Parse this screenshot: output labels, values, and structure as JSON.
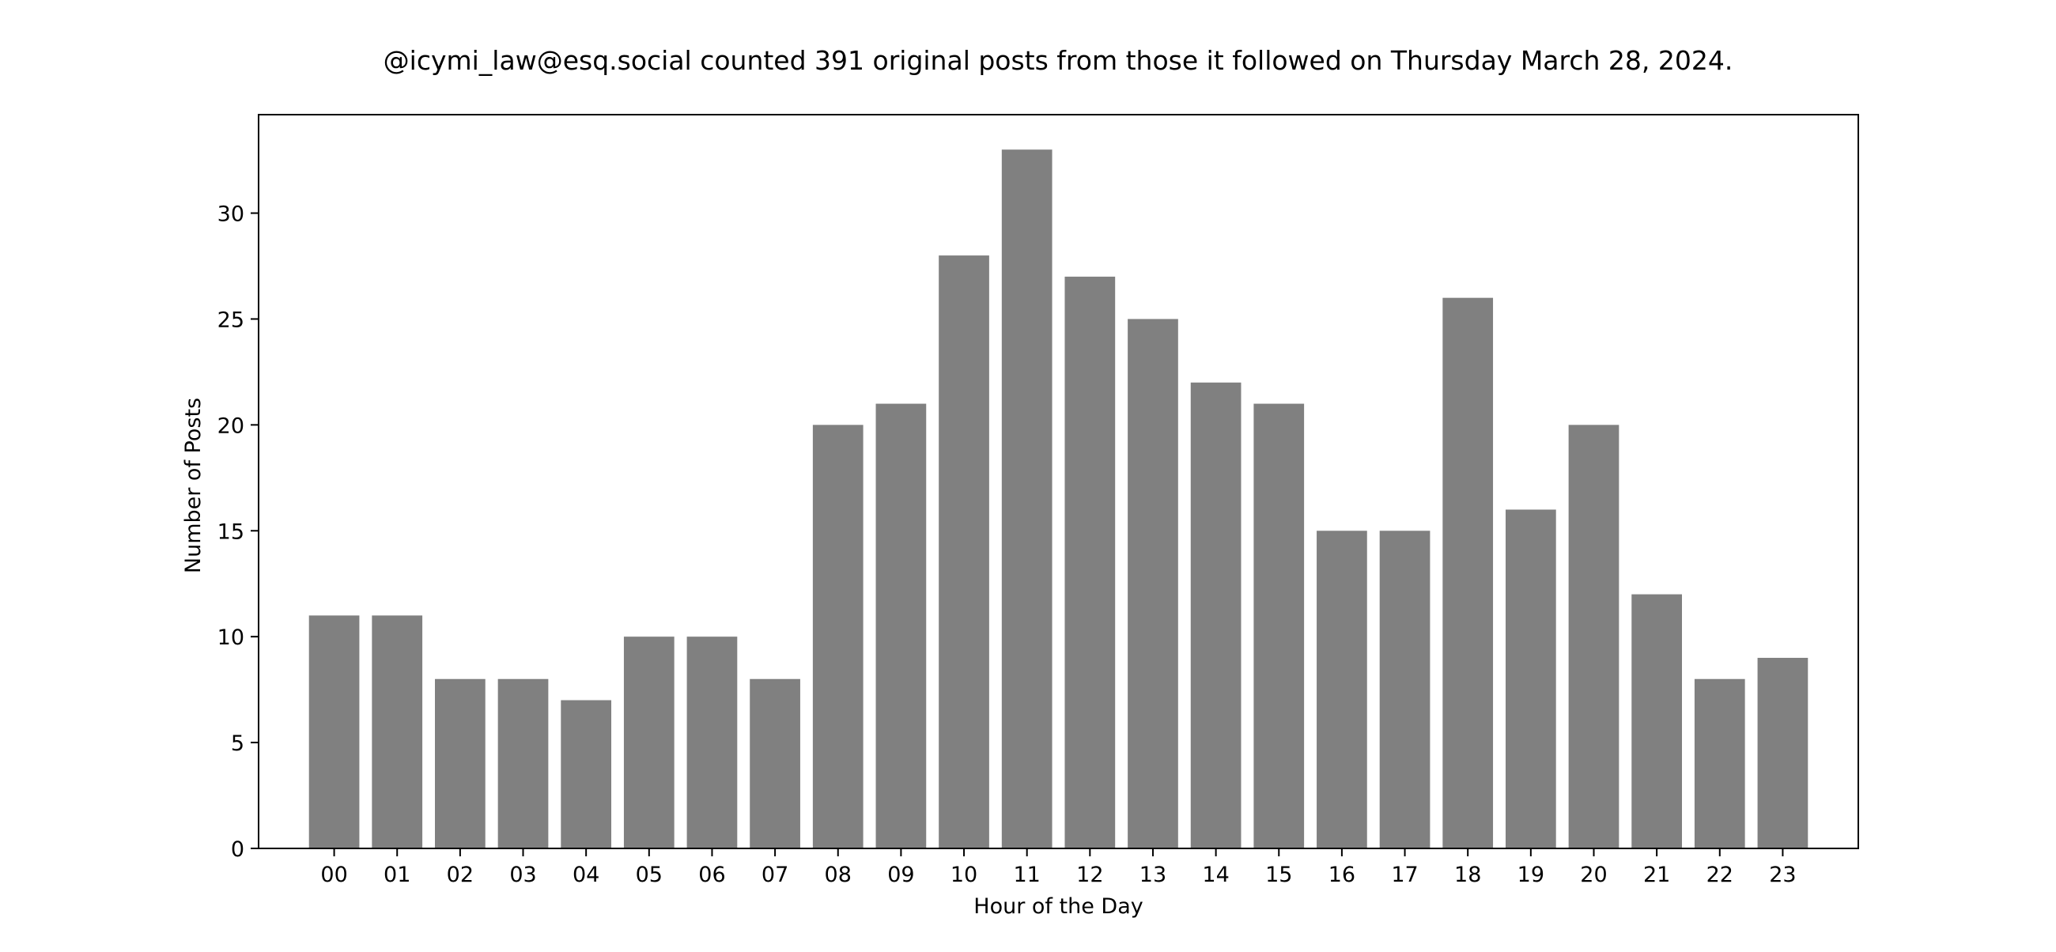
{
  "chart_data": {
    "type": "bar",
    "title": "@icymi_law@esq.social counted 391 original posts from those it followed on Thursday March 28, 2024.",
    "xlabel": "Hour of the Day",
    "ylabel": "Number of Posts",
    "categories": [
      "00",
      "01",
      "02",
      "03",
      "04",
      "05",
      "06",
      "07",
      "08",
      "09",
      "10",
      "11",
      "12",
      "13",
      "14",
      "15",
      "16",
      "17",
      "18",
      "19",
      "20",
      "21",
      "22",
      "23"
    ],
    "values": [
      11,
      11,
      8,
      8,
      7,
      10,
      10,
      8,
      20,
      21,
      28,
      33,
      27,
      25,
      22,
      21,
      15,
      15,
      26,
      16,
      20,
      12,
      8,
      9
    ],
    "ylim": [
      0,
      34.65
    ],
    "yticks": [
      0,
      5,
      10,
      15,
      20,
      25,
      30
    ],
    "grid": false,
    "legend": "none",
    "colors": {
      "bar": "#808080",
      "axis": "#000000",
      "background": "#ffffff"
    }
  }
}
